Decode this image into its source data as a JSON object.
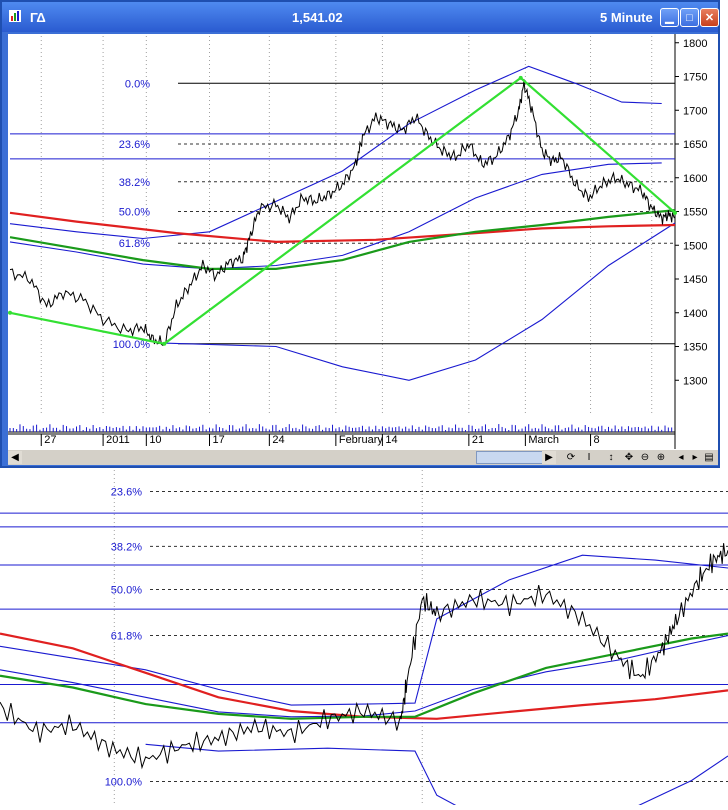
{
  "window": {
    "symbol": "ΓΔ",
    "price": "1,541.02",
    "timeframe": "5 Minute",
    "buttons": [
      "minimize",
      "maximize",
      "close"
    ]
  },
  "chart_data": [
    {
      "type": "line",
      "name": "main",
      "ylim": [
        1250,
        1810
      ],
      "y_ticks": [
        1800,
        1750,
        1700,
        1650,
        1600,
        1550,
        1500,
        1450,
        1400,
        1350,
        1300
      ],
      "x_labels": [
        "27",
        "2011",
        "10",
        "17",
        "24",
        "February",
        "14",
        "21",
        "March",
        "8"
      ],
      "fib_levels": [
        {
          "label": "0.0%",
          "value": 1740
        },
        {
          "label": "23.6%",
          "value": 1650
        },
        {
          "label": "38.2%",
          "value": 1594
        },
        {
          "label": "50.0%",
          "value": 1550
        },
        {
          "label": "61.8%",
          "value": 1503
        },
        {
          "label": "100.0%",
          "value": 1354
        }
      ],
      "extra_lines": [
        1665,
        1628
      ],
      "zigzag": [
        {
          "t": 0,
          "v": 1400
        },
        {
          "t": 0.232,
          "v": 1354
        },
        {
          "t": 0.768,
          "v": 1748
        },
        {
          "t": 1,
          "v": 1548
        }
      ],
      "price": [
        [
          0,
          1460
        ],
        [
          0.03,
          1450
        ],
        [
          0.055,
          1410
        ],
        [
          0.08,
          1430
        ],
        [
          0.11,
          1420
        ],
        [
          0.14,
          1390
        ],
        [
          0.175,
          1373
        ],
        [
          0.2,
          1378
        ],
        [
          0.215,
          1360
        ],
        [
          0.232,
          1354
        ],
        [
          0.25,
          1410
        ],
        [
          0.27,
          1440
        ],
        [
          0.29,
          1470
        ],
        [
          0.31,
          1455
        ],
        [
          0.33,
          1475
        ],
        [
          0.35,
          1480
        ],
        [
          0.36,
          1510
        ],
        [
          0.375,
          1555
        ],
        [
          0.4,
          1560
        ],
        [
          0.42,
          1540
        ],
        [
          0.44,
          1570
        ],
        [
          0.46,
          1565
        ],
        [
          0.48,
          1575
        ],
        [
          0.5,
          1590
        ],
        [
          0.52,
          1620
        ],
        [
          0.53,
          1660
        ],
        [
          0.55,
          1690
        ],
        [
          0.57,
          1680
        ],
        [
          0.59,
          1670
        ],
        [
          0.61,
          1690
        ],
        [
          0.63,
          1660
        ],
        [
          0.65,
          1640
        ],
        [
          0.67,
          1630
        ],
        [
          0.69,
          1650
        ],
        [
          0.71,
          1620
        ],
        [
          0.73,
          1630
        ],
        [
          0.75,
          1660
        ],
        [
          0.765,
          1700
        ],
        [
          0.773,
          1740
        ],
        [
          0.785,
          1700
        ],
        [
          0.8,
          1640
        ],
        [
          0.815,
          1625
        ],
        [
          0.83,
          1630
        ],
        [
          0.85,
          1590
        ],
        [
          0.87,
          1570
        ],
        [
          0.89,
          1590
        ],
        [
          0.91,
          1600
        ],
        [
          0.93,
          1590
        ],
        [
          0.95,
          1580
        ],
        [
          0.965,
          1555
        ],
        [
          0.98,
          1540
        ],
        [
          0.99,
          1545
        ],
        [
          1,
          1541
        ]
      ],
      "ma_red": [
        [
          0,
          1548
        ],
        [
          0.1,
          1535
        ],
        [
          0.25,
          1518
        ],
        [
          0.4,
          1505
        ],
        [
          0.55,
          1508
        ],
        [
          0.7,
          1518
        ],
        [
          0.8,
          1525
        ],
        [
          0.9,
          1528
        ],
        [
          1,
          1530
        ]
      ],
      "ma_green": [
        [
          0,
          1512
        ],
        [
          0.1,
          1495
        ],
        [
          0.2,
          1478
        ],
        [
          0.3,
          1465
        ],
        [
          0.4,
          1465
        ],
        [
          0.5,
          1478
        ],
        [
          0.6,
          1505
        ],
        [
          0.7,
          1520
        ],
        [
          0.8,
          1530
        ],
        [
          0.9,
          1542
        ],
        [
          1,
          1552
        ]
      ],
      "bb_upper": [
        [
          0,
          1532
        ],
        [
          0.1,
          1520
        ],
        [
          0.2,
          1510
        ],
        [
          0.3,
          1520
        ],
        [
          0.4,
          1565
        ],
        [
          0.5,
          1610
        ],
        [
          0.6,
          1680
        ],
        [
          0.7,
          1730
        ],
        [
          0.78,
          1765
        ],
        [
          0.85,
          1740
        ],
        [
          0.92,
          1712
        ],
        [
          0.98,
          1710
        ]
      ],
      "bb_mid": [
        [
          0,
          1505
        ],
        [
          0.1,
          1490
        ],
        [
          0.2,
          1472
        ],
        [
          0.3,
          1465
        ],
        [
          0.4,
          1470
        ],
        [
          0.5,
          1485
        ],
        [
          0.6,
          1520
        ],
        [
          0.7,
          1570
        ],
        [
          0.8,
          1605
        ],
        [
          0.9,
          1620
        ],
        [
          0.98,
          1622
        ]
      ],
      "bb_lower": [
        [
          0.23,
          1355
        ],
        [
          0.4,
          1350
        ],
        [
          0.5,
          1320
        ],
        [
          0.6,
          1300
        ],
        [
          0.7,
          1330
        ],
        [
          0.8,
          1390
        ],
        [
          0.9,
          1470
        ],
        [
          1,
          1533
        ]
      ]
    },
    {
      "type": "line",
      "name": "zoom",
      "ylim": [
        1330,
        1672
      ],
      "fib_levels": [
        {
          "label": "23.6%",
          "value": 1650
        },
        {
          "label": "38.2%",
          "value": 1594
        },
        {
          "label": "50.0%",
          "value": 1550
        },
        {
          "label": "61.8%",
          "value": 1503
        },
        {
          "label": "100.0%",
          "value": 1354
        }
      ],
      "extra_lines": [
        1628,
        1614,
        1575,
        1530,
        1453,
        1414
      ],
      "price": [
        [
          0,
          1430
        ],
        [
          0.05,
          1405
        ],
        [
          0.1,
          1412
        ],
        [
          0.15,
          1388
        ],
        [
          0.2,
          1376
        ],
        [
          0.25,
          1390
        ],
        [
          0.3,
          1398
        ],
        [
          0.35,
          1410
        ],
        [
          0.4,
          1403
        ],
        [
          0.45,
          1418
        ],
        [
          0.5,
          1426
        ],
        [
          0.55,
          1415
        ],
        [
          0.56,
          1460
        ],
        [
          0.58,
          1540
        ],
        [
          0.6,
          1525
        ],
        [
          0.65,
          1540
        ],
        [
          0.7,
          1535
        ],
        [
          0.75,
          1545
        ],
        [
          0.8,
          1520
        ],
        [
          0.85,
          1480
        ],
        [
          0.88,
          1460
        ],
        [
          0.91,
          1490
        ],
        [
          0.93,
          1520
        ],
        [
          0.96,
          1560
        ],
        [
          0.98,
          1580
        ],
        [
          1,
          1590
        ]
      ],
      "ma_red": [
        [
          0,
          1505
        ],
        [
          0.1,
          1490
        ],
        [
          0.2,
          1465
        ],
        [
          0.3,
          1440
        ],
        [
          0.4,
          1426
        ],
        [
          0.5,
          1420
        ],
        [
          0.6,
          1418
        ],
        [
          0.7,
          1425
        ],
        [
          0.8,
          1432
        ],
        [
          0.9,
          1438
        ],
        [
          1,
          1447
        ]
      ],
      "ma_green": [
        [
          0,
          1462
        ],
        [
          0.1,
          1450
        ],
        [
          0.2,
          1433
        ],
        [
          0.3,
          1423
        ],
        [
          0.4,
          1418
        ],
        [
          0.5,
          1420
        ],
        [
          0.57,
          1420
        ],
        [
          0.65,
          1444
        ],
        [
          0.75,
          1470
        ],
        [
          0.85,
          1485
        ],
        [
          0.95,
          1500
        ],
        [
          1,
          1505
        ]
      ],
      "bb_upper": [
        [
          0,
          1492
        ],
        [
          0.1,
          1480
        ],
        [
          0.2,
          1468
        ],
        [
          0.3,
          1448
        ],
        [
          0.4,
          1432
        ],
        [
          0.5,
          1433
        ],
        [
          0.57,
          1434
        ],
        [
          0.6,
          1520
        ],
        [
          0.7,
          1560
        ],
        [
          0.8,
          1585
        ],
        [
          0.9,
          1580
        ],
        [
          1,
          1572
        ]
      ],
      "bb_mid": [
        [
          0,
          1468
        ],
        [
          0.1,
          1455
        ],
        [
          0.2,
          1440
        ],
        [
          0.3,
          1425
        ],
        [
          0.4,
          1420
        ],
        [
          0.5,
          1421
        ],
        [
          0.57,
          1426
        ],
        [
          0.65,
          1448
        ],
        [
          0.75,
          1466
        ],
        [
          0.85,
          1478
        ],
        [
          0.95,
          1495
        ],
        [
          1,
          1503
        ]
      ],
      "bb_lower": [
        [
          0.2,
          1392
        ],
        [
          0.3,
          1385
        ],
        [
          0.45,
          1388
        ],
        [
          0.57,
          1385
        ],
        [
          0.6,
          1340
        ],
        [
          0.7,
          1300
        ],
        [
          0.85,
          1320
        ],
        [
          0.95,
          1355
        ],
        [
          1,
          1380
        ]
      ]
    }
  ],
  "colors": {
    "title_bar": "#2a5bd0",
    "price": "#000000",
    "zigzag": "#33e033",
    "ma_red": "#e02020",
    "ma_green": "#1a9a1a",
    "band": "#1a1ad0",
    "fib_text": "#1a1ad0",
    "grid": "#a0a0a0"
  }
}
